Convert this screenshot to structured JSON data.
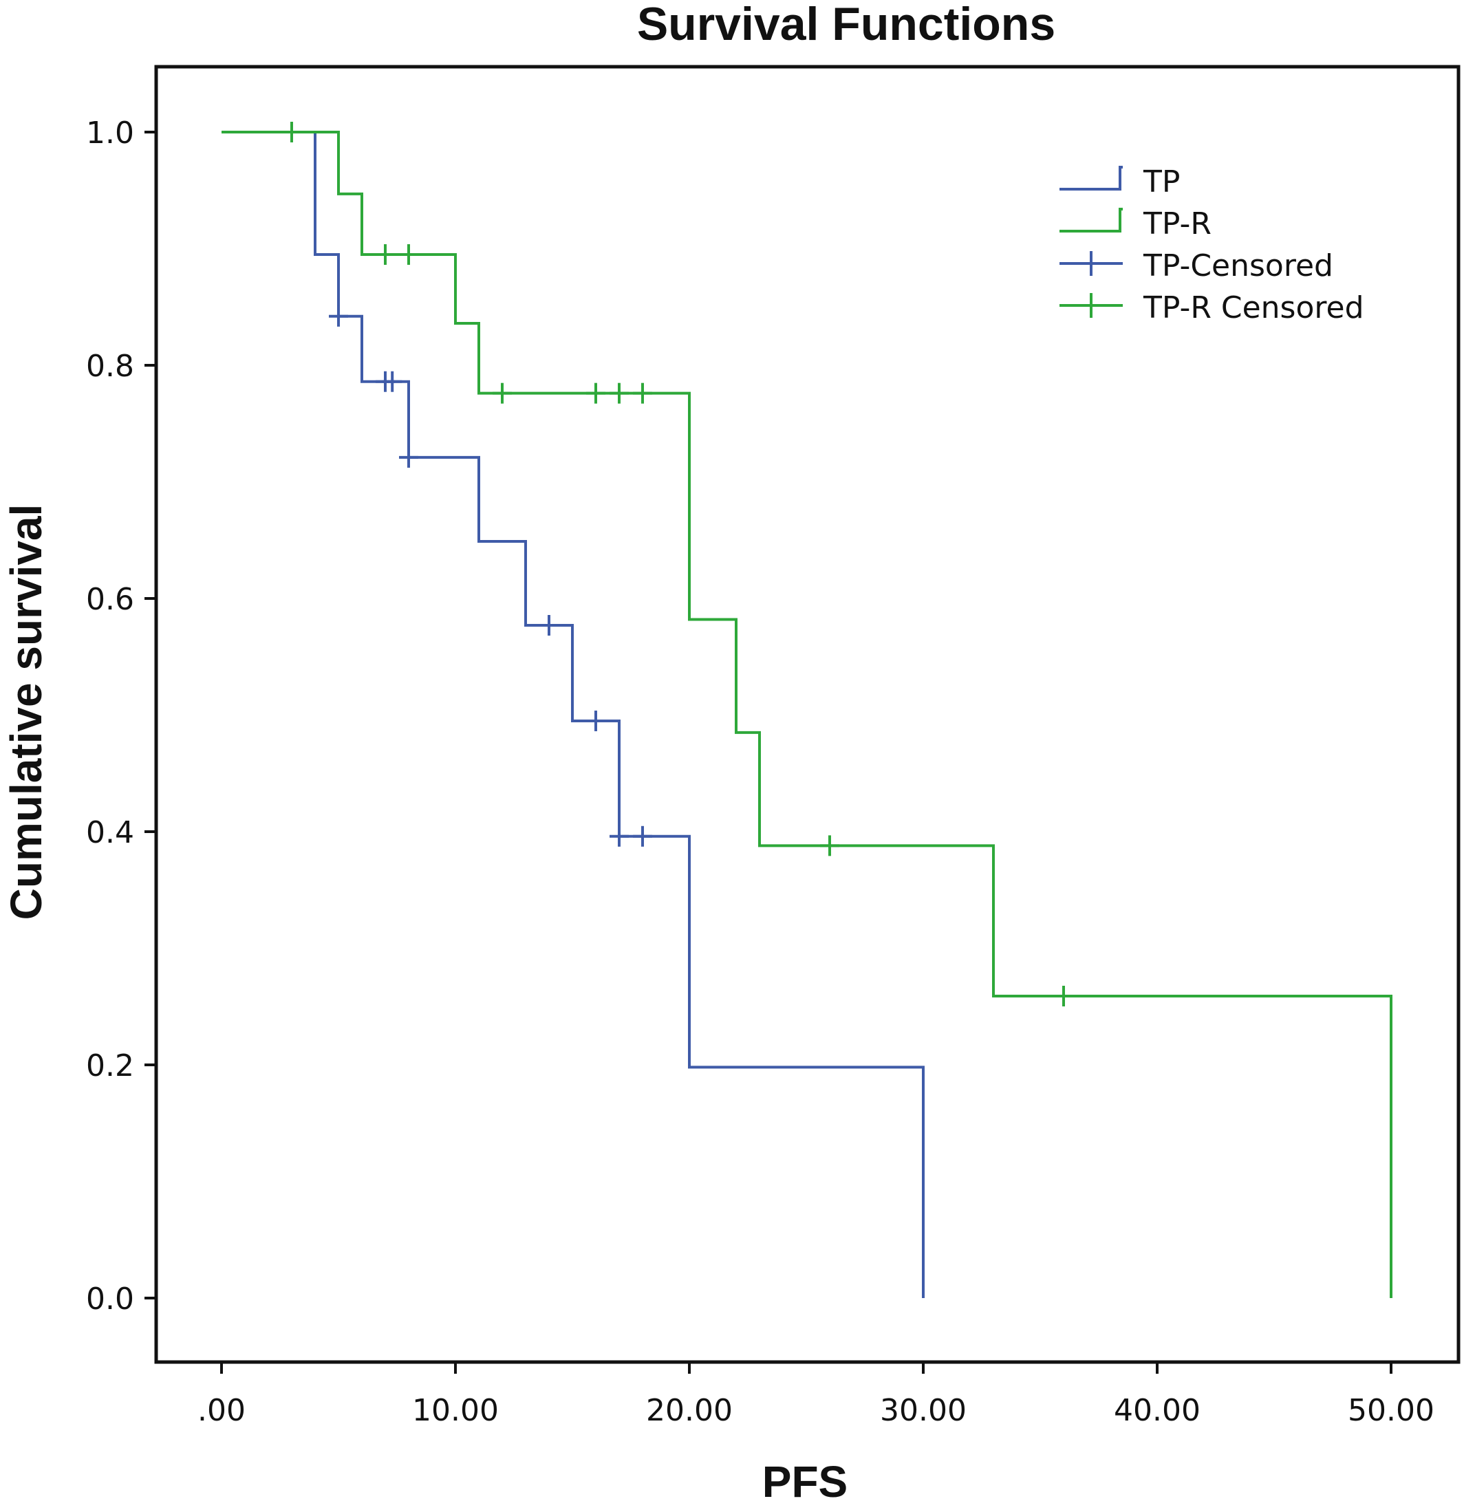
{
  "chart_data": {
    "type": "line",
    "title": "Survival Functions",
    "xlabel": "PFS",
    "ylabel": "Cumulative survival",
    "xlim": [
      -3,
      52
    ],
    "ylim": [
      -0.05,
      1.06
    ],
    "x_ticks": [
      0,
      10,
      20,
      30,
      40,
      50
    ],
    "x_tick_labels": [
      ".00",
      "10.00",
      "20.00",
      "30.00",
      "40.00",
      "50.00"
    ],
    "y_ticks": [
      0,
      0.2,
      0.4,
      0.6,
      0.8,
      1.0
    ],
    "y_tick_labels": [
      "0.0",
      "0.2",
      "0.4",
      "0.6",
      "0.8",
      "1.0"
    ],
    "grid": false,
    "legend_position": "top-right",
    "legend": [
      "TP",
      "TP-R",
      "TP-Censored",
      "TP-R Censored"
    ],
    "series": [
      {
        "name": "TP",
        "color": "#3f5ba8",
        "steps": [
          {
            "x": 0,
            "y": 1.0
          },
          {
            "x": 4,
            "y": 0.895
          },
          {
            "x": 5,
            "y": 0.842
          },
          {
            "x": 6,
            "y": 0.786
          },
          {
            "x": 8,
            "y": 0.721
          },
          {
            "x": 11,
            "y": 0.649
          },
          {
            "x": 13,
            "y": 0.577
          },
          {
            "x": 15,
            "y": 0.495
          },
          {
            "x": 17,
            "y": 0.396
          },
          {
            "x": 20,
            "y": 0.198
          },
          {
            "x": 30,
            "y": 0.0
          }
        ],
        "censored": [
          {
            "x": 5,
            "y": 0.842
          },
          {
            "x": 7,
            "y": 0.786
          },
          {
            "x": 7.3,
            "y": 0.786
          },
          {
            "x": 8,
            "y": 0.721
          },
          {
            "x": 14,
            "y": 0.577
          },
          {
            "x": 16,
            "y": 0.495
          },
          {
            "x": 17,
            "y": 0.396
          },
          {
            "x": 18,
            "y": 0.396
          }
        ]
      },
      {
        "name": "TP-R",
        "color": "#2ea83a",
        "steps": [
          {
            "x": 0,
            "y": 1.0
          },
          {
            "x": 5,
            "y": 0.947
          },
          {
            "x": 6,
            "y": 0.895
          },
          {
            "x": 10,
            "y": 0.836
          },
          {
            "x": 11,
            "y": 0.776
          },
          {
            "x": 20,
            "y": 0.582
          },
          {
            "x": 22,
            "y": 0.485
          },
          {
            "x": 23,
            "y": 0.388
          },
          {
            "x": 33,
            "y": 0.259
          },
          {
            "x": 50,
            "y": 0.0
          }
        ],
        "censored": [
          {
            "x": 3,
            "y": 1.0
          },
          {
            "x": 7,
            "y": 0.895
          },
          {
            "x": 8,
            "y": 0.895
          },
          {
            "x": 12,
            "y": 0.776
          },
          {
            "x": 16,
            "y": 0.776
          },
          {
            "x": 17,
            "y": 0.776
          },
          {
            "x": 18,
            "y": 0.776
          },
          {
            "x": 26,
            "y": 0.388
          },
          {
            "x": 36,
            "y": 0.259
          }
        ]
      }
    ]
  }
}
